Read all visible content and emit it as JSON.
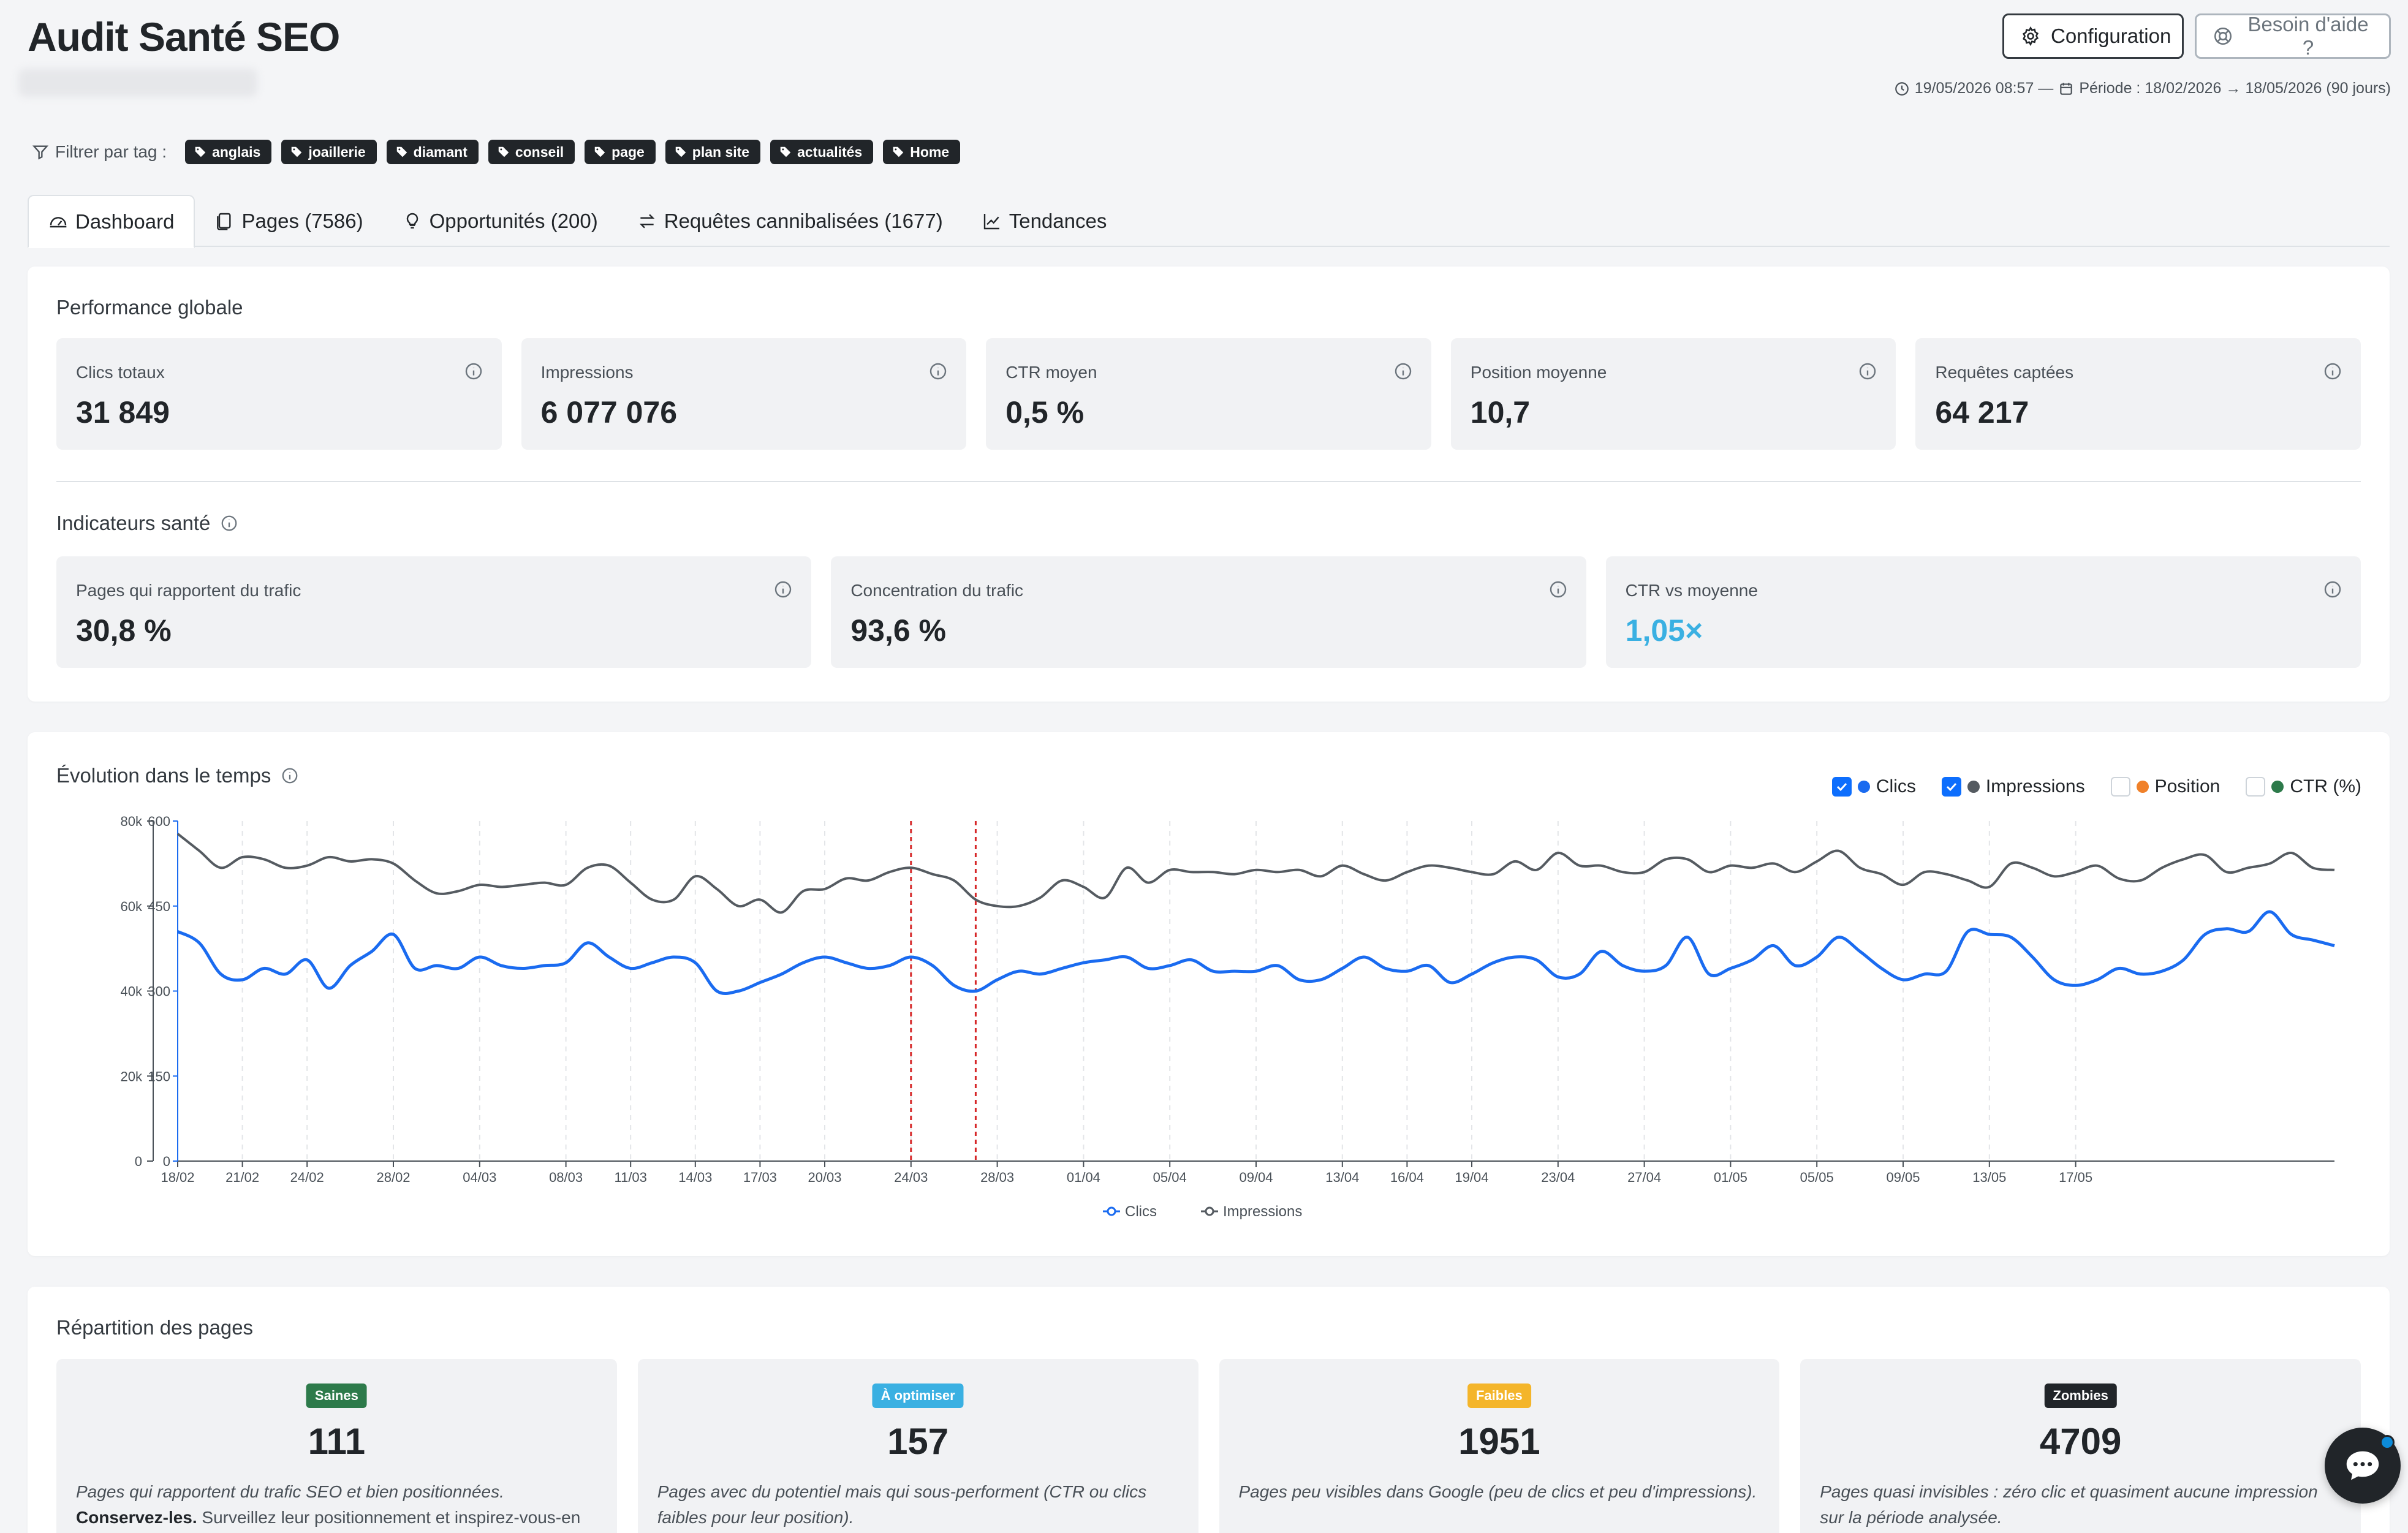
{
  "header": {
    "title": "Audit Santé SEO",
    "config_label": "Configuration",
    "help_label": "Besoin d'aide ?",
    "generated_at": "19/05/2026 08:57 —",
    "period": "Période : 18/02/2026 → 18/05/2026 (90 jours)"
  },
  "filter": {
    "label": "Filtrer par tag :",
    "tags": [
      "anglais",
      "joaillerie",
      "diamant",
      "conseil",
      "page",
      "plan site",
      "actualités",
      "Home"
    ]
  },
  "tabs": [
    {
      "label": "Dashboard",
      "icon": "gauge-icon",
      "active": true
    },
    {
      "label": "Pages (7586)",
      "icon": "pages-icon",
      "active": false
    },
    {
      "label": "Opportunités (200)",
      "icon": "lightbulb-icon",
      "active": false
    },
    {
      "label": "Requêtes cannibalisées (1677)",
      "icon": "swap-arrows-icon",
      "active": false
    },
    {
      "label": "Tendances",
      "icon": "trend-chart-icon",
      "active": false
    }
  ],
  "performance": {
    "title": "Performance globale",
    "kpis": [
      {
        "label": "Clics totaux",
        "value": "31 849"
      },
      {
        "label": "Impressions",
        "value": "6 077 076"
      },
      {
        "label": "CTR moyen",
        "value": "0,5 %"
      },
      {
        "label": "Position moyenne",
        "value": "10,7"
      },
      {
        "label": "Requêtes captées",
        "value": "64 217"
      }
    ]
  },
  "health": {
    "title": "Indicateurs santé",
    "kpis": [
      {
        "label": "Pages qui rapportent du trafic",
        "value": "30,8 %"
      },
      {
        "label": "Concentration du trafic",
        "value": "93,6 %"
      },
      {
        "label": "CTR vs moyenne",
        "value": "1,05×",
        "color": "#3ab0e2"
      }
    ]
  },
  "evolution": {
    "title": "Évolution dans le temps",
    "toggles": [
      {
        "label": "Clics",
        "checked": true,
        "color": "#1a6bf0"
      },
      {
        "label": "Impressions",
        "checked": true,
        "color": "#555b61"
      },
      {
        "label": "Position",
        "checked": false,
        "color": "#f0812a"
      },
      {
        "label": "CTR (%)",
        "checked": false,
        "color": "#2d7a4a"
      }
    ],
    "bottom_legend": [
      "Clics",
      "Impressions"
    ]
  },
  "chart_data": {
    "type": "line",
    "x_start": "18/02",
    "x_end": "17/05",
    "x_tick_labels": [
      "18/02",
      "21/02",
      "24/02",
      "28/02",
      "04/03",
      "08/03",
      "11/03",
      "14/03",
      "17/03",
      "20/03",
      "24/03",
      "28/03",
      "01/04",
      "05/04",
      "09/04",
      "13/04",
      "16/04",
      "19/04",
      "23/04",
      "27/04",
      "01/05",
      "05/05",
      "09/05",
      "13/05",
      "17/05"
    ],
    "y_left": {
      "ticks": [
        "0",
        "20k",
        "40k",
        "60k",
        "80k"
      ],
      "range": [
        0,
        80000
      ],
      "series": "Impressions"
    },
    "y_right": {
      "ticks": [
        "0",
        "150",
        "300",
        "450",
        "600"
      ],
      "range": [
        0,
        600
      ],
      "series": "Clics"
    },
    "annotations": [
      {
        "type": "vline",
        "x": "24/03",
        "color": "#d62728"
      },
      {
        "type": "vline",
        "x": "27/03",
        "color": "#d62728"
      }
    ],
    "series": [
      {
        "name": "Impressions",
        "axis": "left",
        "color": "#555b61",
        "values": [
          77000,
          73000,
          69000,
          71500,
          71000,
          69000,
          69500,
          71500,
          70500,
          71000,
          70000,
          66000,
          63000,
          63500,
          65000,
          64500,
          65000,
          65500,
          65000,
          69000,
          69500,
          65500,
          61500,
          61500,
          67000,
          64000,
          60000,
          61500,
          58500,
          63500,
          64000,
          66500,
          66000,
          68000,
          69000,
          67500,
          66000,
          61500,
          60000,
          60000,
          62000,
          66000,
          64500,
          62000,
          69000,
          65500,
          68500,
          68000,
          68000,
          67500,
          68500,
          68000,
          68500,
          67000,
          69500,
          67500,
          66000,
          68000,
          69500,
          69000,
          68000,
          67500,
          70500,
          68500,
          72500,
          69500,
          69500,
          68000,
          68000,
          71000,
          71000,
          68000,
          69500,
          69000,
          70000,
          68000,
          70500,
          73000,
          69000,
          67500,
          65000,
          68000,
          67500,
          66000,
          64500,
          70000,
          69000,
          67000,
          68000,
          69500,
          66500,
          66000,
          69000,
          71000,
          72000,
          68000,
          69000,
          70000,
          72500,
          69000,
          68500
        ]
      },
      {
        "name": "Clics",
        "axis": "right",
        "color": "#1a6bf0",
        "values": [
          405,
          385,
          330,
          320,
          340,
          330,
          355,
          305,
          345,
          370,
          400,
          340,
          345,
          340,
          360,
          345,
          340,
          345,
          350,
          385,
          360,
          340,
          350,
          360,
          350,
          300,
          300,
          315,
          330,
          350,
          360,
          350,
          340,
          345,
          360,
          345,
          310,
          300,
          320,
          335,
          330,
          340,
          350,
          355,
          360,
          340,
          345,
          355,
          335,
          335,
          335,
          345,
          320,
          320,
          340,
          360,
          340,
          335,
          345,
          315,
          330,
          350,
          360,
          355,
          325,
          330,
          370,
          345,
          335,
          345,
          395,
          330,
          340,
          355,
          380,
          345,
          360,
          395,
          370,
          340,
          320,
          330,
          335,
          405,
          400,
          395,
          360,
          320,
          310,
          320,
          340,
          330,
          335,
          355,
          400,
          410,
          405,
          440,
          400,
          390,
          380
        ]
      }
    ]
  },
  "distribution": {
    "title": "Répartition des pages",
    "cards": [
      {
        "badge": "Saines",
        "badge_bg": "#2d7a4a",
        "badge_fg": "#ffffff",
        "value": "111",
        "desc": "Pages qui rapportent du trafic SEO et bien positionnées.",
        "note_bold": "Conservez-les.",
        "note": " Surveillez leur positionnement et inspirez-vous-en"
      },
      {
        "badge": "À optimiser",
        "badge_bg": "#3ab0e2",
        "badge_fg": "#ffffff",
        "value": "157",
        "desc": "Pages avec du potentiel mais qui sous-performent (CTR ou clics faibles pour leur position).",
        "note_bold": "",
        "note": ""
      },
      {
        "badge": "Faibles",
        "badge_bg": "#f4b52a",
        "badge_fg": "#ffffff",
        "value": "1951",
        "desc": "Pages peu visibles dans Google (peu de clics et peu d'impressions).",
        "note_bold": "",
        "note": ""
      },
      {
        "badge": "Zombies",
        "badge_bg": "#212529",
        "badge_fg": "#ffffff",
        "value": "4709",
        "desc": "Pages quasi invisibles : zéro clic et quasiment aucune impression sur la période analysée.",
        "note_bold": "",
        "note": ""
      }
    ]
  }
}
